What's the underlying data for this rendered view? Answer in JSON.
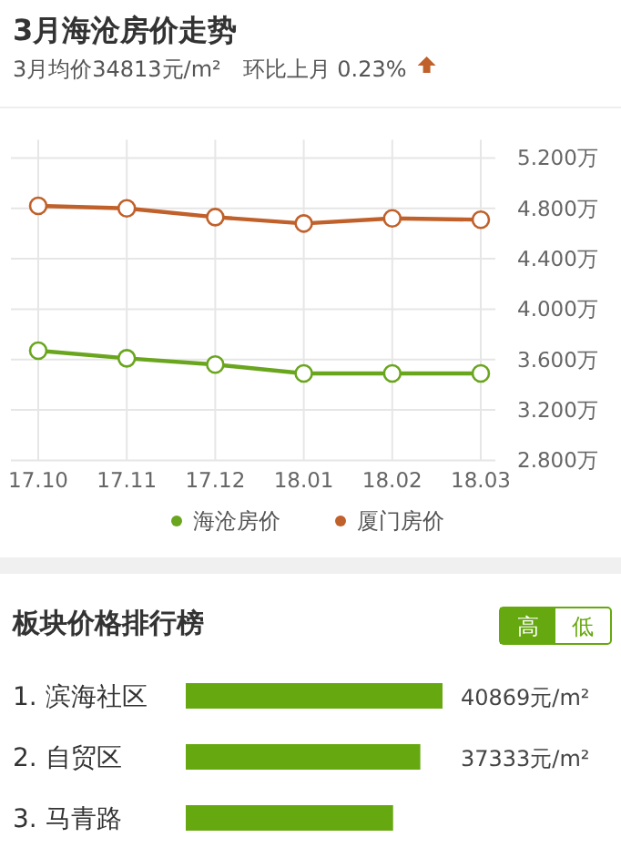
{
  "chart_data": [
    {
      "type": "line",
      "title": "3月海沧房价走势",
      "subtitle": "3月均价34813元/m²　环比上月 0.23%",
      "categories": [
        "17.10",
        "17.11",
        "17.12",
        "18.01",
        "18.02",
        "18.03"
      ],
      "series": [
        {
          "name": "海沧房价",
          "color": "#6aa51e",
          "values": [
            3.67,
            3.61,
            3.56,
            3.49,
            3.49,
            3.49
          ]
        },
        {
          "name": "厦门房价",
          "color": "#c0602a",
          "values": [
            4.82,
            4.8,
            4.73,
            4.68,
            4.72,
            4.71
          ]
        }
      ],
      "ylim": [
        2.8,
        5.2
      ],
      "yticks": [
        {
          "value": 2.8,
          "label": "2.800万"
        },
        {
          "value": 3.2,
          "label": "3.200万"
        },
        {
          "value": 3.6,
          "label": "3.600万"
        },
        {
          "value": 4.0,
          "label": "4.000万"
        },
        {
          "value": 4.4,
          "label": "4.400万"
        },
        {
          "value": 4.8,
          "label": "4.800万"
        },
        {
          "value": 5.2,
          "label": "5.200万"
        }
      ],
      "grid": true,
      "legend": "bottom",
      "marker": "circle",
      "line_style": "solid"
    },
    {
      "type": "bar",
      "orientation": "horizontal",
      "title": "板块价格排行榜",
      "categories": [
        "1. 滨海社区",
        "2. 自贸区",
        "3. 马青路"
      ],
      "values": [
        40869,
        37333,
        33000
      ],
      "value_labels": [
        "40869元/m²",
        "37333元/m²",
        null
      ],
      "color": "#66a80f",
      "annotations": [
        "高",
        "低"
      ]
    }
  ]
}
